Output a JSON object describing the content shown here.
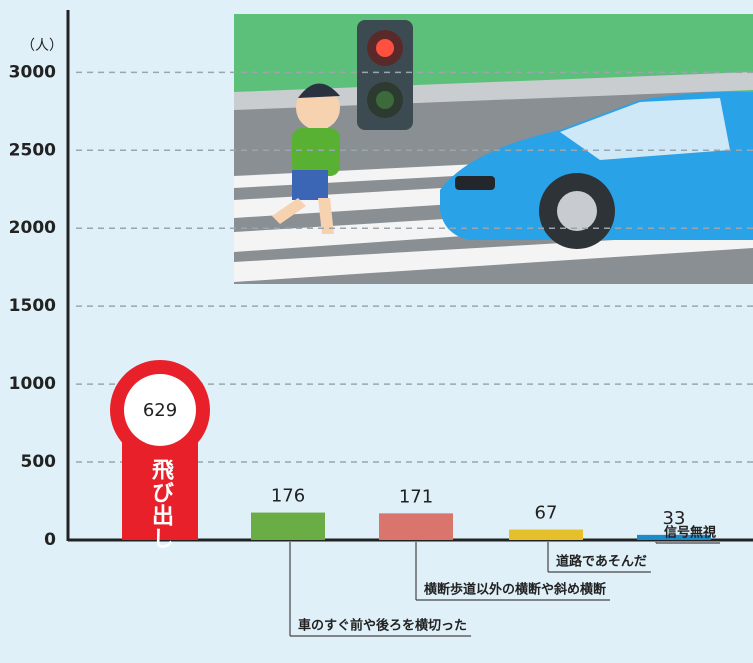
{
  "chart_data": {
    "type": "bar",
    "unit_label": "（人）",
    "categories": [
      "飛び出し",
      "車のすぐ前や後ろを横切った",
      "横断歩道以外の横断や斜め横断",
      "道路であそんだ",
      "信号無視"
    ],
    "values": [
      629,
      176,
      171,
      67,
      33
    ],
    "colors": [
      "#e8202a",
      "#6aad44",
      "#d9756d",
      "#e6c02a",
      "#1b8cc9"
    ],
    "ylim": [
      0,
      3400
    ],
    "yticks": [
      0,
      500,
      1000,
      1500,
      2000,
      2500,
      3000
    ],
    "grid": true
  }
}
